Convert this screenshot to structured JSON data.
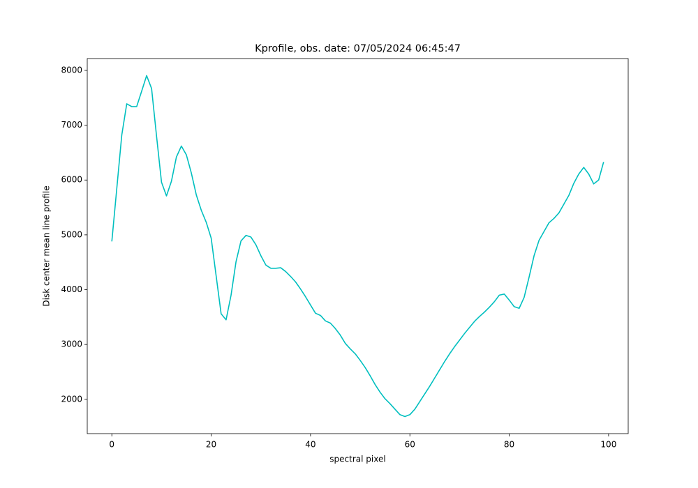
{
  "chart_data": {
    "type": "line",
    "title": "Kprofile, obs. date: 07/05/2024 06:45:47",
    "x_label": "spectral pixel",
    "y_label": "Disk center mean line profile",
    "color": "#00bfbf",
    "x": [
      0,
      1,
      2,
      3,
      4,
      5,
      6,
      7,
      8,
      9,
      10,
      11,
      12,
      13,
      14,
      15,
      16,
      17,
      18,
      19,
      20,
      21,
      22,
      23,
      24,
      25,
      26,
      27,
      28,
      29,
      30,
      31,
      32,
      33,
      34,
      35,
      36,
      37,
      38,
      39,
      40,
      41,
      42,
      43,
      44,
      45,
      46,
      47,
      48,
      49,
      50,
      51,
      52,
      53,
      54,
      55,
      56,
      57,
      58,
      59,
      60,
      61,
      62,
      63,
      64,
      65,
      66,
      67,
      68,
      69,
      70,
      71,
      72,
      73,
      74,
      75,
      76,
      77,
      78,
      79,
      80,
      81,
      82,
      83,
      84,
      85,
      86,
      87,
      88,
      89,
      90,
      91,
      92,
      93,
      94,
      95,
      96,
      97,
      98,
      99
    ],
    "values": [
      4880,
      5850,
      6820,
      7390,
      7340,
      7340,
      7620,
      7905,
      7670,
      6800,
      5960,
      5710,
      5980,
      6420,
      6620,
      6460,
      6130,
      5730,
      5450,
      5230,
      4940,
      4250,
      3560,
      3450,
      3900,
      4510,
      4890,
      4990,
      4960,
      4820,
      4620,
      4450,
      4390,
      4390,
      4400,
      4330,
      4240,
      4140,
      4010,
      3870,
      3720,
      3570,
      3530,
      3430,
      3390,
      3290,
      3170,
      3020,
      2920,
      2830,
      2710,
      2580,
      2430,
      2270,
      2130,
      2010,
      1920,
      1820,
      1720,
      1685,
      1720,
      1820,
      1960,
      2100,
      2240,
      2390,
      2540,
      2690,
      2830,
      2960,
      3080,
      3200,
      3310,
      3420,
      3510,
      3590,
      3680,
      3780,
      3900,
      3920,
      3810,
      3690,
      3660,
      3860,
      4230,
      4620,
      4900,
      5060,
      5220,
      5300,
      5400,
      5560,
      5720,
      5940,
      6110,
      6230,
      6110,
      5930,
      6000,
      6330
    ],
    "xlim": [
      -4.95,
      103.95
    ],
    "ylim": [
      1374,
      8216
    ],
    "xticks": [
      0,
      20,
      40,
      60,
      80,
      100
    ],
    "yticks": [
      2000,
      3000,
      4000,
      5000,
      6000,
      7000,
      8000
    ]
  }
}
